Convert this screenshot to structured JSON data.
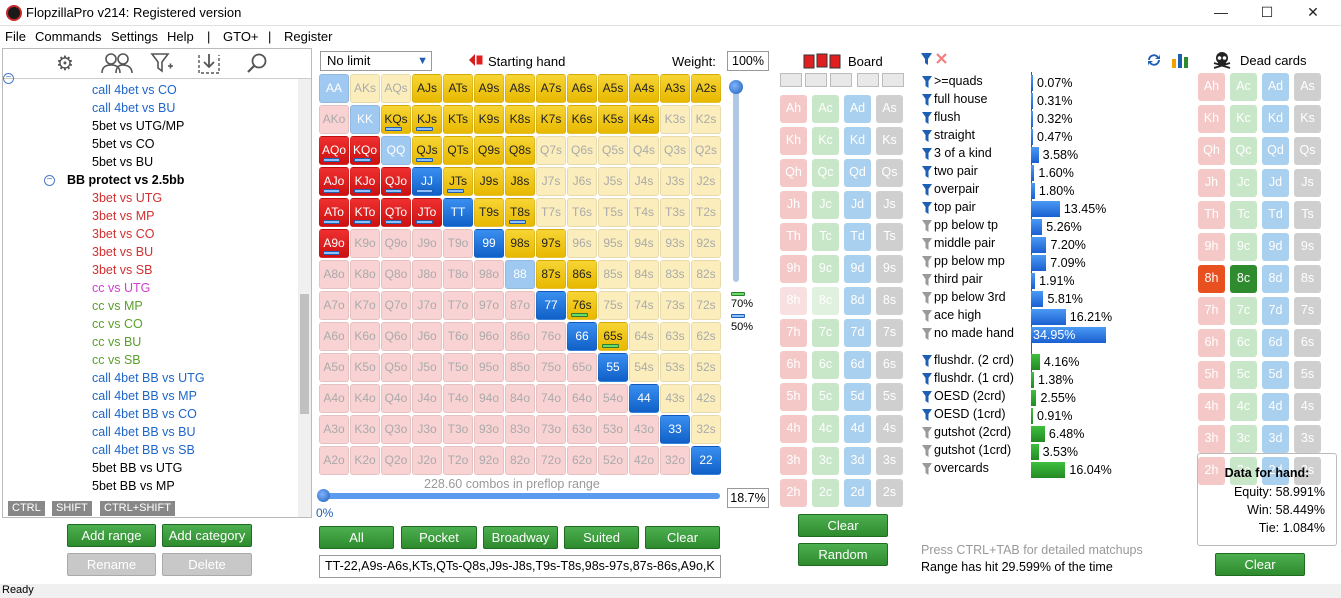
{
  "window": {
    "title": "FlopzillaPro v214: Registered version",
    "minimize": "—",
    "maximize": "☐",
    "close": "✕"
  },
  "menu": [
    "File",
    "Commands",
    "Settings",
    "Help",
    "|",
    "GTO+",
    "|",
    "Register"
  ],
  "tree": {
    "items": [
      {
        "label": "call 4bet vs CO",
        "color": "#1e66c8"
      },
      {
        "label": "call 4bet vs BU",
        "color": "#1e66c8"
      },
      {
        "label": "5bet vs UTG/MP",
        "color": "#000000"
      },
      {
        "label": "5bet vs CO",
        "color": "#000000"
      },
      {
        "label": "5bet vs BU",
        "color": "#000000"
      },
      {
        "label": "BB protect vs 2.5bb",
        "color": "#000000",
        "group": true
      },
      {
        "label": "3bet vs UTG",
        "color": "#d03030"
      },
      {
        "label": "3bet vs MP",
        "color": "#d03030"
      },
      {
        "label": "3bet vs CO",
        "color": "#d03030"
      },
      {
        "label": "3bet vs BU",
        "color": "#d03030"
      },
      {
        "label": "3bet vs SB",
        "color": "#d03030"
      },
      {
        "label": "cc vs UTG",
        "color": "#d040d0"
      },
      {
        "label": "cc vs MP",
        "color": "#5aa02a"
      },
      {
        "label": "cc vs CO",
        "color": "#5aa02a"
      },
      {
        "label": "cc vs BU",
        "color": "#5aa02a"
      },
      {
        "label": "cc vs SB",
        "color": "#5aa02a"
      },
      {
        "label": "call 4bet BB vs UTG",
        "color": "#1e66c8"
      },
      {
        "label": "call 4bet BB vs MP",
        "color": "#1e66c8"
      },
      {
        "label": "call 4bet BB vs CO",
        "color": "#1e66c8"
      },
      {
        "label": "call 4bet BB vs BU",
        "color": "#1e66c8"
      },
      {
        "label": "call 4bet BB vs SB",
        "color": "#1e66c8"
      },
      {
        "label": "5bet BB vs UTG",
        "color": "#000000"
      },
      {
        "label": "5bet BB vs MP",
        "color": "#000000"
      }
    ],
    "modkeys": [
      "CTRL",
      "SHIFT",
      "CTRL+SHIFT"
    ],
    "buttons": {
      "add_range": "Add range",
      "add_category": "Add category",
      "rename": "Rename",
      "delete": "Delete"
    }
  },
  "range": {
    "limit": "No limit",
    "starting_hand_label": "Starting hand",
    "weight_label": "Weight:",
    "weight": "100%",
    "combos_text": "228.60 combos in preflop range",
    "pct_zero": "0%",
    "range_pct": "18.7%",
    "slider_marks": [
      "70%",
      "50%"
    ],
    "range_string": "TT-22,A9s-A6s,KTs,QTs-Q8s,J9s-J8s,T9s-T8s,98s-97s,87s-86s,A9o,K",
    "buttons": [
      "All",
      "Pocket",
      "Broadway",
      "Suited",
      "Clear"
    ],
    "ranks": [
      "A",
      "K",
      "Q",
      "J",
      "T",
      "9",
      "8",
      "7",
      "6",
      "5",
      "4",
      "3",
      "2"
    ],
    "selected_cells": [
      "AJs",
      "ATs",
      "A9s",
      "A8s",
      "A7s",
      "A6s",
      "A5s",
      "A4s",
      "A3s",
      "A2s",
      "KQs",
      "KJs",
      "KTs",
      "K9s",
      "K8s",
      "K7s",
      "K6s",
      "K5s",
      "K4s",
      "QJs",
      "QTs",
      "Q9s",
      "Q8s",
      "JTs",
      "J9s",
      "J8s",
      "T9s",
      "T8s",
      "98s",
      "97s",
      "87s",
      "86s",
      "76s",
      "65s"
    ],
    "red_cells": [
      "AQo",
      "KQo",
      "AJo",
      "KJo",
      "QJo",
      "ATo",
      "KTo",
      "QTo",
      "JTo",
      "A9o"
    ],
    "blue_cells": [
      "JJ",
      "TT",
      "99",
      "77",
      "66",
      "55",
      "44",
      "33",
      "22"
    ],
    "blue_light_cells": [
      "AA",
      "KK",
      "QQ",
      "88"
    ],
    "blue_bar_cells": [
      "KQs",
      "KJs",
      "AQo",
      "KQo",
      "QJs",
      "AJo",
      "KJo",
      "QJo",
      "JJ",
      "JTs",
      "ATo",
      "KTo",
      "QTo",
      "JTo",
      "T8s",
      "A9o"
    ],
    "green_bar_cells": [
      "76s",
      "65s"
    ]
  },
  "board": {
    "label": "Board",
    "rows": [
      "A",
      "K",
      "Q",
      "J",
      "T",
      "9",
      "8",
      "7",
      "6",
      "5",
      "4",
      "3",
      "2"
    ],
    "suits": [
      "h",
      "c",
      "d",
      "s"
    ],
    "dimmed": [
      "8h",
      "8c"
    ],
    "buttons": {
      "clear": "Clear",
      "random": "Random"
    }
  },
  "stats": {
    "made": [
      {
        "label": ">=quads",
        "value": "0.07%",
        "pct": 0.07,
        "active": true
      },
      {
        "label": "full house",
        "value": "0.31%",
        "pct": 0.31,
        "active": true
      },
      {
        "label": "flush",
        "value": "0.32%",
        "pct": 0.32,
        "active": true
      },
      {
        "label": "straight",
        "value": "0.47%",
        "pct": 0.47,
        "active": true
      },
      {
        "label": "3 of a kind",
        "value": "3.58%",
        "pct": 3.58,
        "active": true
      },
      {
        "label": "two pair",
        "value": "1.60%",
        "pct": 1.6,
        "active": true
      },
      {
        "label": "overpair",
        "value": "1.80%",
        "pct": 1.8,
        "active": true
      },
      {
        "label": "top pair",
        "value": "13.45%",
        "pct": 13.45,
        "active": true
      },
      {
        "label": "pp below tp",
        "value": "5.26%",
        "pct": 5.26,
        "active": false
      },
      {
        "label": "middle pair",
        "value": "7.20%",
        "pct": 7.2,
        "active": false
      },
      {
        "label": "pp below mp",
        "value": "7.09%",
        "pct": 7.09,
        "active": false
      },
      {
        "label": "third pair",
        "value": "1.91%",
        "pct": 1.91,
        "active": false
      },
      {
        "label": "pp below 3rd",
        "value": "5.81%",
        "pct": 5.81,
        "active": false
      },
      {
        "label": "ace high",
        "value": "16.21%",
        "pct": 16.21,
        "active": false
      },
      {
        "label": "no made hand",
        "value": "34.95%",
        "pct": 34.95,
        "active": false,
        "highlight": true
      }
    ],
    "draws": [
      {
        "label": "flushdr. (2 crd)",
        "value": "4.16%",
        "pct": 4.16,
        "active": true
      },
      {
        "label": "flushdr. (1 crd)",
        "value": "1.38%",
        "pct": 1.38,
        "active": true
      },
      {
        "label": "OESD (2crd)",
        "value": "2.55%",
        "pct": 2.55,
        "active": true
      },
      {
        "label": "OESD (1crd)",
        "value": "0.91%",
        "pct": 0.91,
        "active": true
      },
      {
        "label": "gutshot (2crd)",
        "value": "6.48%",
        "pct": 6.48,
        "active": false
      },
      {
        "label": "gutshot (1crd)",
        "value": "3.53%",
        "pct": 3.53,
        "active": false
      },
      {
        "label": "overcards",
        "value": "16.04%",
        "pct": 16.04,
        "active": false
      }
    ],
    "detail_text": "Press CTRL+TAB for detailed matchups",
    "hit_text": "Range has hit 29.599% of the time"
  },
  "dead": {
    "label": "Dead cards",
    "dead_cards": [
      "8h",
      "8c"
    ],
    "data_title": "Data for hand:",
    "equity": "Equity: 58.991%",
    "win": "Win: 58.449%",
    "tie": "Tie: 1.084%",
    "clear": "Clear"
  },
  "status": "Ready",
  "colors": {
    "accent": "#1e5fb4",
    "green": "#2e8b2e",
    "selected": "#f2c200",
    "red": "#e02020"
  }
}
